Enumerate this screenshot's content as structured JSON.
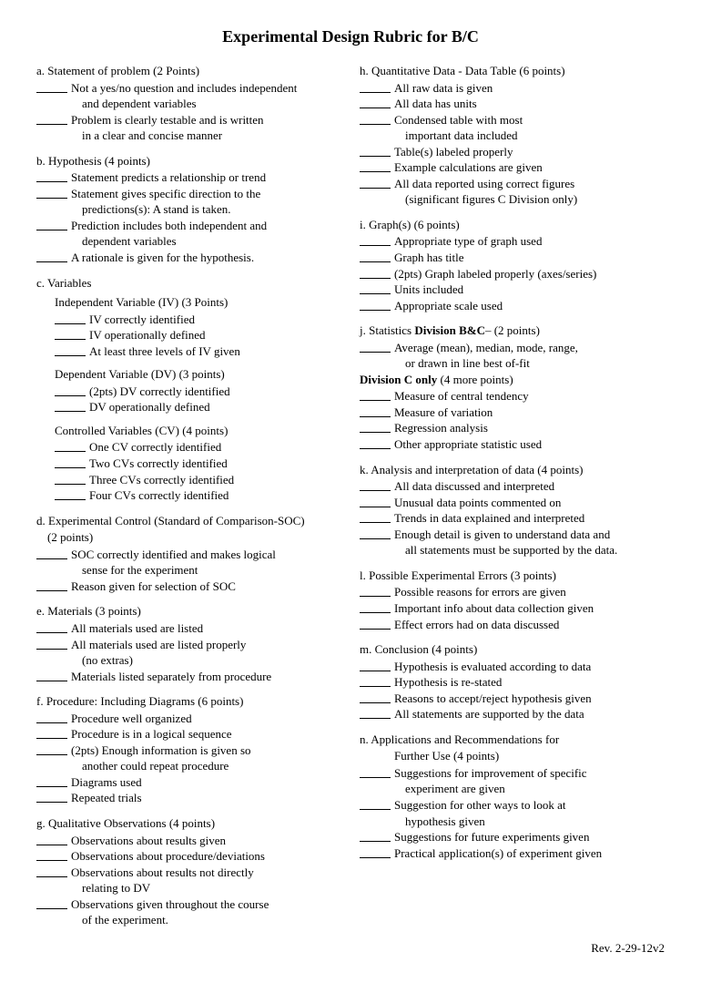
{
  "title": "Experimental Design Rubric for B/C",
  "footer": "Rev. 2-29-12v2",
  "left": {
    "a": {
      "header": "a. Statement of problem (2 Points)",
      "items": [
        {
          "text": "Not a yes/no question and includes independent",
          "cont": "and dependent variables"
        },
        {
          "text": "Problem is clearly testable and is written",
          "cont": "in a clear and concise manner"
        }
      ]
    },
    "b": {
      "header": "b. Hypothesis (4 points)",
      "items": [
        {
          "text": "Statement predicts a relationship or trend"
        },
        {
          "text": "Statement gives specific direction to the",
          "cont": "predictions(s): A stand is taken."
        },
        {
          "text": "Prediction includes both independent and",
          "cont": "dependent variables"
        },
        {
          "text": "A rationale is given for the hypothesis."
        }
      ]
    },
    "c": {
      "header": "c. Variables",
      "iv": {
        "sub": "Independent Variable (IV) (3 Points)",
        "items": [
          {
            "text": "IV correctly identified"
          },
          {
            "text": "IV operationally defined"
          },
          {
            "text": "At least three levels of IV given"
          }
        ]
      },
      "dv": {
        "sub": "Dependent Variable (DV)  (3 points)",
        "items": [
          {
            "text": "(2pts) DV correctly identified"
          },
          {
            "text": "DV operationally defined"
          }
        ]
      },
      "cv": {
        "sub": "Controlled Variables (CV)  (4 points)",
        "items": [
          {
            "text": "One CV correctly identified"
          },
          {
            "text": "Two CVs correctly identified"
          },
          {
            "text": "Three CVs correctly identified"
          },
          {
            "text": "Four CVs correctly identified"
          }
        ]
      }
    },
    "d": {
      "header": "d. Experimental Control (Standard of Comparison-SOC)",
      "header2": "(2 points)",
      "items": [
        {
          "text": "SOC correctly identified and makes logical",
          "cont": "sense for the experiment"
        },
        {
          "text": "Reason given for selection of SOC"
        }
      ]
    },
    "e": {
      "header": "e. Materials (3 points)",
      "items": [
        {
          "text": "All materials used are listed"
        },
        {
          "text": "All materials used are listed properly",
          "cont": "(no extras)"
        },
        {
          "text": "Materials listed separately from procedure"
        }
      ]
    },
    "f": {
      "header": "f. Procedure: Including Diagrams (6 points)",
      "items": [
        {
          "text": "Procedure well organized"
        },
        {
          "text": "Procedure is in a logical sequence"
        },
        {
          "text": "(2pts) Enough information is given so",
          "cont": "another could repeat procedure"
        },
        {
          "text": "Diagrams used"
        },
        {
          "text": "Repeated trials"
        }
      ]
    },
    "g": {
      "header": "g. Qualitative Observations (4 points)",
      "items": [
        {
          "text": "Observations about results given"
        },
        {
          "text": "Observations about procedure/deviations"
        },
        {
          "text": "Observations about results not directly",
          "cont": "relating to DV"
        },
        {
          "text": "Observations given throughout the course",
          "cont": "of the experiment."
        }
      ]
    }
  },
  "right": {
    "h": {
      "header": "h. Quantitative Data - Data Table (6 points)",
      "items": [
        {
          "text": "All raw data is given"
        },
        {
          "text": "All data has units"
        },
        {
          "text": "Condensed table with most",
          "cont": "important data included"
        },
        {
          "text": "Table(s) labeled properly"
        },
        {
          "text": "Example calculations are given"
        },
        {
          "text": "All data reported using correct figures",
          "cont": "(significant figures C Division only)"
        }
      ]
    },
    "i": {
      "header": "i. Graph(s) (6 points)",
      "items": [
        {
          "text": "Appropriate type of graph used"
        },
        {
          "text": "Graph has title"
        },
        {
          "text": "(2pts) Graph labeled properly (axes/series)"
        },
        {
          "text": "Units included"
        },
        {
          "text": "Appropriate scale used"
        }
      ]
    },
    "j": {
      "header_pre": "j. Statistics ",
      "header_bold": "Division B&C",
      "header_post": "– (2 points)",
      "items1": [
        {
          "text": "Average (mean), median, mode, range,",
          "cont": "or drawn in line best of-fit"
        }
      ],
      "div_c_bold": "Division C only",
      "div_c_post": " (4 more points)",
      "items2": [
        {
          "text": "Measure of central tendency"
        },
        {
          "text": "Measure of variation"
        },
        {
          "text": "Regression analysis"
        },
        {
          "text": "Other appropriate statistic used"
        }
      ]
    },
    "k": {
      "header": "k. Analysis and interpretation of data (4 points)",
      "items": [
        {
          "text": "All data discussed and interpreted"
        },
        {
          "text": "Unusual data points commented on"
        },
        {
          "text": "Trends in data explained and interpreted"
        },
        {
          "text": "Enough detail is given to understand data and",
          "cont": "all statements must be supported by the data."
        }
      ]
    },
    "l": {
      "header": "l. Possible Experimental Errors (3 points)",
      "items": [
        {
          "text": "Possible reasons for errors are given"
        },
        {
          "text": "Important info about data collection given"
        },
        {
          "text": "Effect errors had on data discussed"
        }
      ]
    },
    "m": {
      "header": "m. Conclusion (4 points)",
      "items": [
        {
          "text": "Hypothesis is evaluated according to data"
        },
        {
          "text": "Hypothesis is re-stated"
        },
        {
          "text": "Reasons to accept/reject hypothesis given"
        },
        {
          "text": "All statements are supported by the data"
        }
      ]
    },
    "n": {
      "header": "n. Applications and Recommendations for",
      "header2": "Further Use (4 points)",
      "items": [
        {
          "text": "Suggestions for improvement of specific",
          "cont": "experiment are given"
        },
        {
          "text": "Suggestion for other ways to look at",
          "cont": "hypothesis given"
        },
        {
          "text": "Suggestions for future experiments given"
        },
        {
          "text": "Practical application(s) of experiment given"
        }
      ]
    }
  }
}
